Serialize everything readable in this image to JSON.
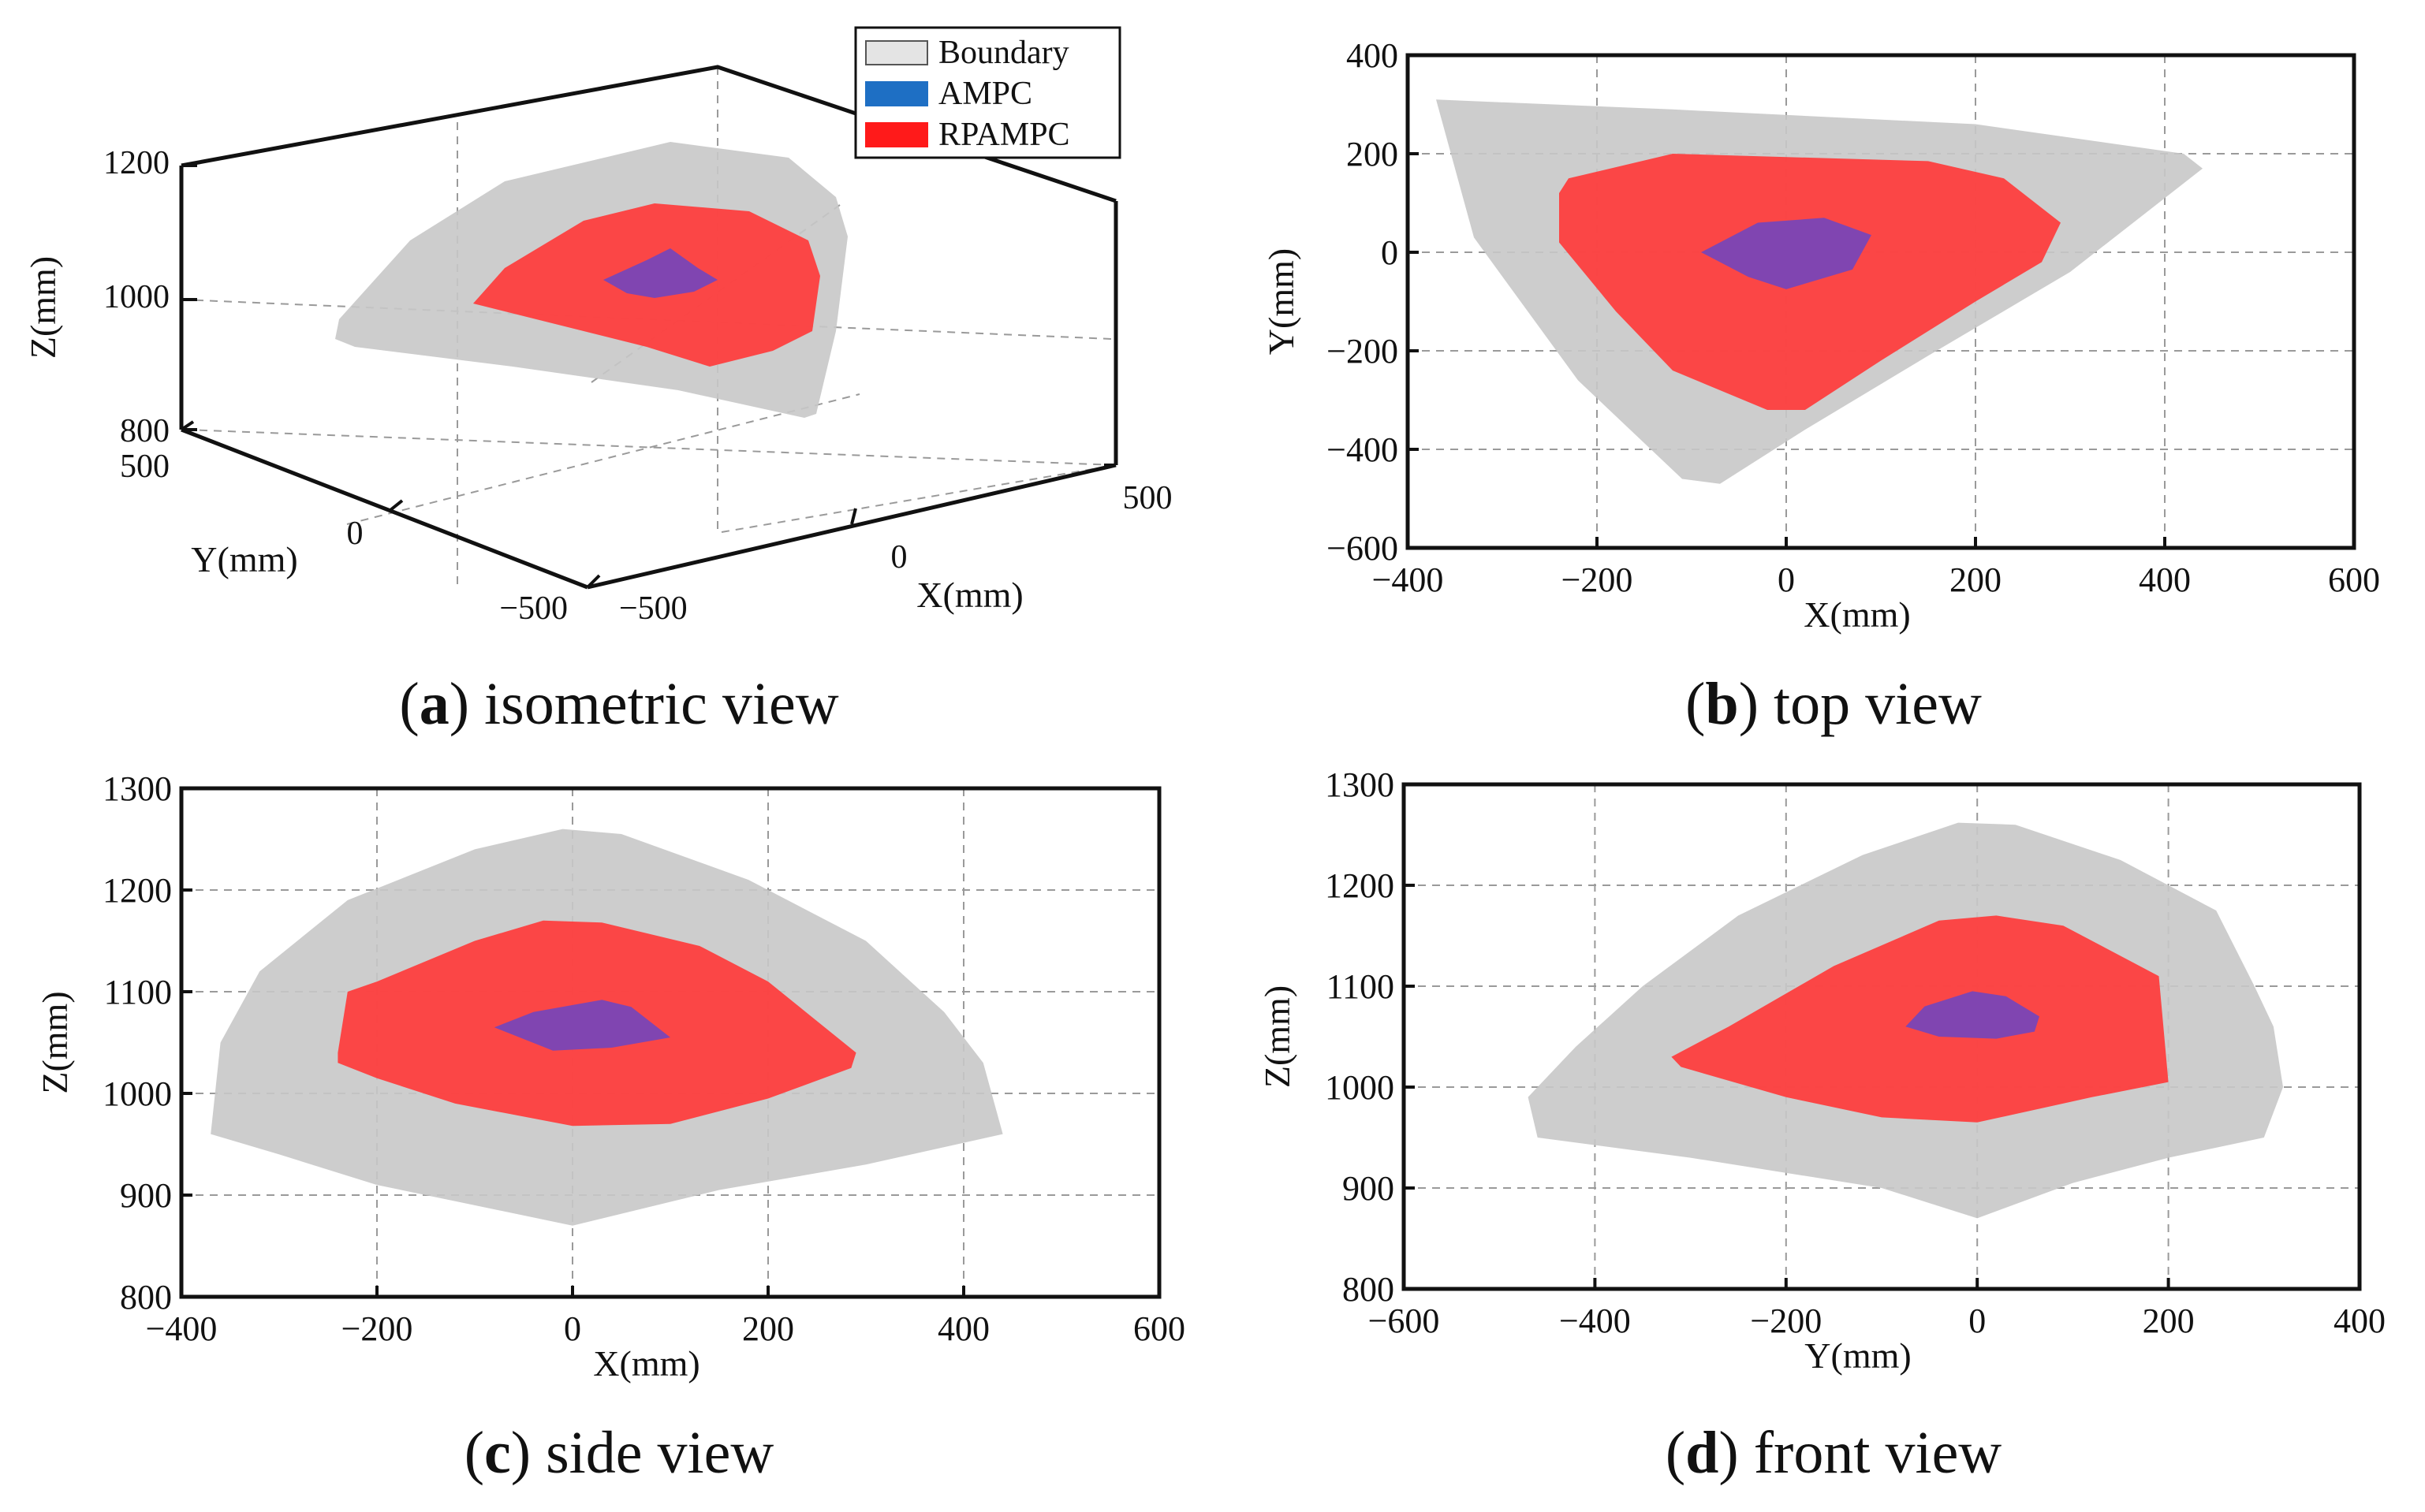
{
  "colors": {
    "boundary_fill": "#c8c8c8",
    "ampc_fill": "#6a45c4",
    "rpampc_fill": "#ff3b3b",
    "legend_boundary": "#e4e4e4",
    "legend_ampc": "#1e6fc4",
    "legend_rpampc": "#ff1a1a",
    "grid": "#9a9a9a",
    "axis": "#111111"
  },
  "legend": {
    "entries": [
      "Boundary",
      "AMPC",
      "RPAMPC"
    ]
  },
  "chart_data": [
    {
      "id": "a",
      "type": "area",
      "view": "isometric",
      "caption_letter": "a",
      "caption_text": "isometric view",
      "xlabel": "X(mm)",
      "ylabel": "Y(mm)",
      "zlabel": "Z(mm)",
      "x_ticks": [
        "−500",
        "0",
        "500"
      ],
      "y_ticks": [
        "500",
        "0",
        "−500"
      ],
      "z_ticks": [
        "1200",
        "1000",
        "800"
      ],
      "xlim": [
        -500,
        500
      ],
      "ylim": [
        -500,
        500
      ],
      "zlim": [
        800,
        1200
      ],
      "grid": true,
      "legend_position": "top-right"
    },
    {
      "id": "b",
      "type": "area",
      "view": "top",
      "caption_letter": "b",
      "caption_text": "top view",
      "xlabel": "X(mm)",
      "ylabel": "Y(mm)",
      "xlim": [
        -400,
        600
      ],
      "ylim": [
        -600,
        400
      ],
      "x_ticks": [
        -400,
        -200,
        0,
        200,
        400,
        600
      ],
      "y_ticks": [
        400,
        200,
        0,
        -200,
        -400,
        -600
      ],
      "x_tick_labels": [
        "−400",
        "−200",
        "0",
        "200",
        "400",
        "600"
      ],
      "y_tick_labels": [
        "400",
        "200",
        "0",
        "−200",
        "−400",
        "−600"
      ],
      "grid": true,
      "series": [
        {
          "name": "Boundary",
          "polygon": [
            [
              -370,
              310
            ],
            [
              -120,
              290
            ],
            [
              200,
              260
            ],
            [
              420,
              200
            ],
            [
              440,
              170
            ],
            [
              300,
              -40
            ],
            [
              150,
              -210
            ],
            [
              20,
              -360
            ],
            [
              -70,
              -470
            ],
            [
              -110,
              -460
            ],
            [
              -220,
              -260
            ],
            [
              -330,
              30
            ]
          ]
        },
        {
          "name": "RPAMPC",
          "polygon": [
            [
              -230,
              150
            ],
            [
              -120,
              200
            ],
            [
              150,
              185
            ],
            [
              230,
              150
            ],
            [
              290,
              60
            ],
            [
              270,
              -20
            ],
            [
              200,
              -100
            ],
            [
              100,
              -220
            ],
            [
              20,
              -320
            ],
            [
              -20,
              -320
            ],
            [
              -120,
              -240
            ],
            [
              -180,
              -120
            ],
            [
              -240,
              20
            ],
            [
              -240,
              120
            ]
          ]
        },
        {
          "name": "AMPC",
          "polygon": [
            [
              -30,
              60
            ],
            [
              40,
              70
            ],
            [
              90,
              35
            ],
            [
              70,
              -35
            ],
            [
              0,
              -75
            ],
            [
              -40,
              -50
            ],
            [
              -90,
              0
            ]
          ]
        }
      ]
    },
    {
      "id": "c",
      "type": "area",
      "view": "side",
      "caption_letter": "c",
      "caption_text": "side view",
      "xlabel": "X(mm)",
      "ylabel": "Z(mm)",
      "xlim": [
        -400,
        600
      ],
      "ylim": [
        800,
        1300
      ],
      "x_ticks": [
        -400,
        -200,
        0,
        200,
        400,
        600
      ],
      "y_ticks": [
        1300,
        1200,
        1100,
        1000,
        900,
        800
      ],
      "x_tick_labels": [
        "−400",
        "−200",
        "0",
        "200",
        "400",
        "600"
      ],
      "y_tick_labels": [
        "1300",
        "1200",
        "1100",
        "1000",
        "900",
        "800"
      ],
      "grid": true,
      "series": [
        {
          "name": "Boundary",
          "polygon": [
            [
              -370,
              960
            ],
            [
              -360,
              1050
            ],
            [
              -320,
              1120
            ],
            [
              -230,
              1190
            ],
            [
              -100,
              1240
            ],
            [
              -10,
              1260
            ],
            [
              50,
              1255
            ],
            [
              180,
              1210
            ],
            [
              300,
              1150
            ],
            [
              380,
              1080
            ],
            [
              420,
              1030
            ],
            [
              440,
              960
            ],
            [
              300,
              930
            ],
            [
              150,
              905
            ],
            [
              0,
              870
            ],
            [
              -200,
              910
            ],
            [
              -300,
              940
            ]
          ]
        },
        {
          "name": "RPAMPC",
          "polygon": [
            [
              -240,
              1040
            ],
            [
              -230,
              1100
            ],
            [
              -200,
              1110
            ],
            [
              -100,
              1150
            ],
            [
              -30,
              1170
            ],
            [
              30,
              1168
            ],
            [
              130,
              1145
            ],
            [
              200,
              1110
            ],
            [
              290,
              1040
            ],
            [
              285,
              1025
            ],
            [
              200,
              995
            ],
            [
              100,
              970
            ],
            [
              0,
              968
            ],
            [
              -120,
              990
            ],
            [
              -200,
              1015
            ],
            [
              -240,
              1030
            ]
          ]
        },
        {
          "name": "AMPC",
          "polygon": [
            [
              -80,
              1065
            ],
            [
              -40,
              1080
            ],
            [
              30,
              1092
            ],
            [
              60,
              1085
            ],
            [
              100,
              1055
            ],
            [
              40,
              1045
            ],
            [
              -20,
              1042
            ]
          ]
        }
      ]
    },
    {
      "id": "d",
      "type": "area",
      "view": "front",
      "caption_letter": "d",
      "caption_text": "front view",
      "xlabel": "Y(mm)",
      "ylabel": "Z(mm)",
      "xlim": [
        -600,
        400
      ],
      "ylim": [
        800,
        1300
      ],
      "x_ticks": [
        -600,
        -400,
        -200,
        0,
        200,
        400
      ],
      "y_ticks": [
        1300,
        1200,
        1100,
        1000,
        900,
        800
      ],
      "x_tick_labels": [
        "−600",
        "−400",
        "−200",
        "0",
        "200",
        "400"
      ],
      "y_tick_labels": [
        "1300",
        "1200",
        "1100",
        "1000",
        "900",
        "800"
      ],
      "grid": true,
      "series": [
        {
          "name": "Boundary",
          "polygon": [
            [
              -470,
              990
            ],
            [
              -420,
              1040
            ],
            [
              -350,
              1100
            ],
            [
              -250,
              1170
            ],
            [
              -120,
              1230
            ],
            [
              -20,
              1262
            ],
            [
              40,
              1260
            ],
            [
              150,
              1225
            ],
            [
              250,
              1175
            ],
            [
              290,
              1100
            ],
            [
              310,
              1060
            ],
            [
              320,
              1000
            ],
            [
              300,
              950
            ],
            [
              200,
              930
            ],
            [
              100,
              905
            ],
            [
              0,
              870
            ],
            [
              -100,
              900
            ],
            [
              -300,
              930
            ],
            [
              -460,
              950
            ]
          ]
        },
        {
          "name": "RPAMPC",
          "polygon": [
            [
              -320,
              1030
            ],
            [
              -260,
              1060
            ],
            [
              -150,
              1120
            ],
            [
              -40,
              1165
            ],
            [
              20,
              1170
            ],
            [
              90,
              1160
            ],
            [
              190,
              1110
            ],
            [
              200,
              1005
            ],
            [
              120,
              990
            ],
            [
              0,
              965
            ],
            [
              -100,
              970
            ],
            [
              -200,
              990
            ],
            [
              -310,
              1020
            ]
          ]
        },
        {
          "name": "AMPC",
          "polygon": [
            [
              -75,
              1060
            ],
            [
              -55,
              1080
            ],
            [
              -5,
              1095
            ],
            [
              30,
              1090
            ],
            [
              65,
              1070
            ],
            [
              60,
              1055
            ],
            [
              20,
              1048
            ],
            [
              -40,
              1050
            ]
          ]
        }
      ]
    }
  ]
}
